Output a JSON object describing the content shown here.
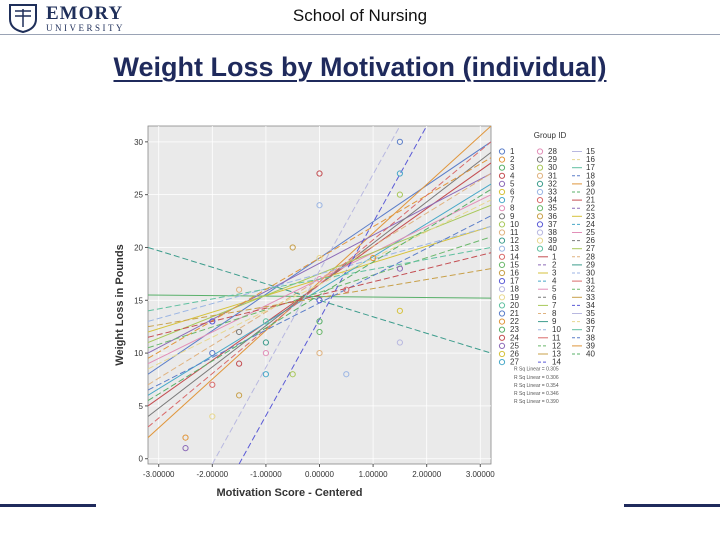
{
  "header": {
    "logo_name": "EMORY",
    "logo_sub": "UNIVERSITY",
    "school": "School of Nursing"
  },
  "slide": {
    "title": "Weight Loss by Motivation (individual)"
  },
  "colors": {
    "title": "#1f2a5c",
    "plot_bg": "#eaeaea",
    "grid": "#ffffff",
    "rule": "#1f2a5c"
  },
  "chart_data": {
    "type": "scatter",
    "title": "",
    "xlabel": "Motivation Score - Centered",
    "ylabel": "Weight Loss in Pounds",
    "xlim": [
      -3.2,
      3.2
    ],
    "ylim": [
      -0.5,
      31.5
    ],
    "x_ticks": [
      "-3.00000",
      "-2.00000",
      "-1.00000",
      "0.00000",
      "1.00000",
      "2.00000",
      "3.00000"
    ],
    "y_ticks": [
      "0",
      "5",
      "10",
      "15",
      "20",
      "25",
      "30"
    ],
    "legend_title": "Group ID",
    "legend_position": "right",
    "legend_points": [
      "1",
      "2",
      "3",
      "4",
      "5",
      "6",
      "7",
      "8",
      "9",
      "10",
      "11",
      "12",
      "13",
      "14",
      "15",
      "16",
      "17",
      "18",
      "19",
      "20",
      "21",
      "22",
      "23",
      "24",
      "25",
      "26",
      "27",
      "28",
      "29",
      "30",
      "31",
      "32",
      "33",
      "34",
      "35",
      "36",
      "37",
      "38",
      "39",
      "40"
    ],
    "legend_lines": [
      "1",
      "2",
      "3",
      "4",
      "5",
      "6",
      "7",
      "8",
      "9",
      "10",
      "11",
      "12",
      "13",
      "14",
      "15",
      "16",
      "17",
      "18",
      "19",
      "20",
      "21",
      "22",
      "23",
      "24",
      "25",
      "26",
      "27",
      "28",
      "29",
      "30",
      "31",
      "32",
      "33",
      "34",
      "35",
      "36",
      "37",
      "38",
      "39",
      "40"
    ],
    "legend_rsq": [
      "R Sq Linear = 0.305",
      "R Sq Linear = 0.306",
      "R Sq Linear = 0.354",
      "R Sq Linear = 0.346",
      "R Sq Linear = 0.390"
    ],
    "points": [
      [
        1.5,
        30
      ],
      [
        0.0,
        27
      ],
      [
        1.5,
        27
      ],
      [
        1.5,
        25
      ],
      [
        0.0,
        24
      ],
      [
        -0.5,
        20
      ],
      [
        0.0,
        19
      ],
      [
        1.0,
        19
      ],
      [
        1.5,
        18
      ],
      [
        0.0,
        17
      ],
      [
        -1.5,
        16
      ],
      [
        0.5,
        16
      ],
      [
        -2.0,
        13
      ],
      [
        -1.0,
        13
      ],
      [
        0.0,
        13
      ],
      [
        1.5,
        14
      ],
      [
        -1.5,
        12
      ],
      [
        -1.0,
        11
      ],
      [
        0.0,
        12
      ],
      [
        1.5,
        11
      ],
      [
        -2.0,
        10
      ],
      [
        -1.5,
        9
      ],
      [
        -1.0,
        8
      ],
      [
        -0.5,
        8
      ],
      [
        0.5,
        8
      ],
      [
        -1.5,
        6
      ],
      [
        -2.0,
        4
      ],
      [
        -2.5,
        2
      ],
      [
        -2.5,
        1
      ],
      [
        -1.0,
        10
      ],
      [
        0.0,
        10
      ],
      [
        -2.0,
        7
      ],
      [
        0.0,
        15
      ]
    ],
    "lines": [
      {
        "x1": -3.2,
        "y1": 8,
        "x2": 3.2,
        "y2": 30,
        "style": "solid"
      },
      {
        "x1": -3.2,
        "y1": 2,
        "x2": 3.2,
        "y2": 31.5,
        "style": "solid"
      },
      {
        "x1": -3.2,
        "y1": 15.5,
        "x2": 3.2,
        "y2": 15.2,
        "style": "solid"
      },
      {
        "x1": -3.2,
        "y1": 5,
        "x2": 3.2,
        "y2": 28,
        "style": "solid"
      },
      {
        "x1": -3.2,
        "y1": 10,
        "x2": 3.2,
        "y2": 27,
        "style": "solid"
      },
      {
        "x1": -3.2,
        "y1": 12,
        "x2": 3.2,
        "y2": 22,
        "style": "solid"
      },
      {
        "x1": -3.2,
        "y1": 6,
        "x2": 3.2,
        "y2": 26,
        "style": "solid"
      },
      {
        "x1": -3.2,
        "y1": 9,
        "x2": 3.2,
        "y2": 25,
        "style": "solid"
      },
      {
        "x1": -3.2,
        "y1": 4,
        "x2": 3.2,
        "y2": 29,
        "style": "solid"
      },
      {
        "x1": -3.2,
        "y1": 11,
        "x2": 3.2,
        "y2": 24,
        "style": "solid"
      },
      {
        "x1": -3.2,
        "y1": 7,
        "x2": 3.2,
        "y2": 27,
        "style": "dashed"
      },
      {
        "x1": -3.2,
        "y1": 20,
        "x2": 3.2,
        "y2": 10,
        "style": "dashed"
      },
      {
        "x1": -3.2,
        "y1": 13,
        "x2": 3.2,
        "y2": 22,
        "style": "dashed"
      },
      {
        "x1": -3.2,
        "y1": 3,
        "x2": 3.2,
        "y2": 30,
        "style": "dashed"
      },
      {
        "x1": -3.2,
        "y1": 10.5,
        "x2": 3.2,
        "y2": 21,
        "style": "dashed"
      },
      {
        "x1": -3.2,
        "y1": 12.5,
        "x2": 3.2,
        "y2": 18,
        "style": "dashed"
      },
      {
        "x1": -1.5,
        "y1": -0.5,
        "x2": 2.0,
        "y2": 31.5,
        "style": "dashed"
      },
      {
        "x1": -2.0,
        "y1": -0.5,
        "x2": 1.5,
        "y2": 31.5,
        "style": "dashed"
      },
      {
        "x1": -3.2,
        "y1": 8.5,
        "x2": 3.2,
        "y2": 24.5,
        "style": "dashed"
      },
      {
        "x1": -3.2,
        "y1": 14,
        "x2": 3.2,
        "y2": 20,
        "style": "dashed"
      },
      {
        "x1": -3.2,
        "y1": 6.5,
        "x2": 3.2,
        "y2": 23,
        "style": "dashed"
      },
      {
        "x1": -3.2,
        "y1": 9.5,
        "x2": 3.2,
        "y2": 28.5,
        "style": "dashed"
      },
      {
        "x1": -3.2,
        "y1": 5.5,
        "x2": 3.2,
        "y2": 25.5,
        "style": "dashed"
      },
      {
        "x1": -3.2,
        "y1": 11.5,
        "x2": 3.2,
        "y2": 19.5,
        "style": "dashed"
      }
    ],
    "palette": [
      "#5b7ec9",
      "#e0963c",
      "#59b06a",
      "#c44e52",
      "#8c6bb8",
      "#d6c23c",
      "#47a8c8",
      "#e28fb8",
      "#7a7a7a",
      "#a8c85a",
      "#e0b380",
      "#3c9c8c",
      "#9cb6e4",
      "#d96a6a",
      "#6bb86b",
      "#c8a04a",
      "#5a5ad6",
      "#b8b8e0",
      "#e8d890",
      "#60c0a0"
    ]
  }
}
